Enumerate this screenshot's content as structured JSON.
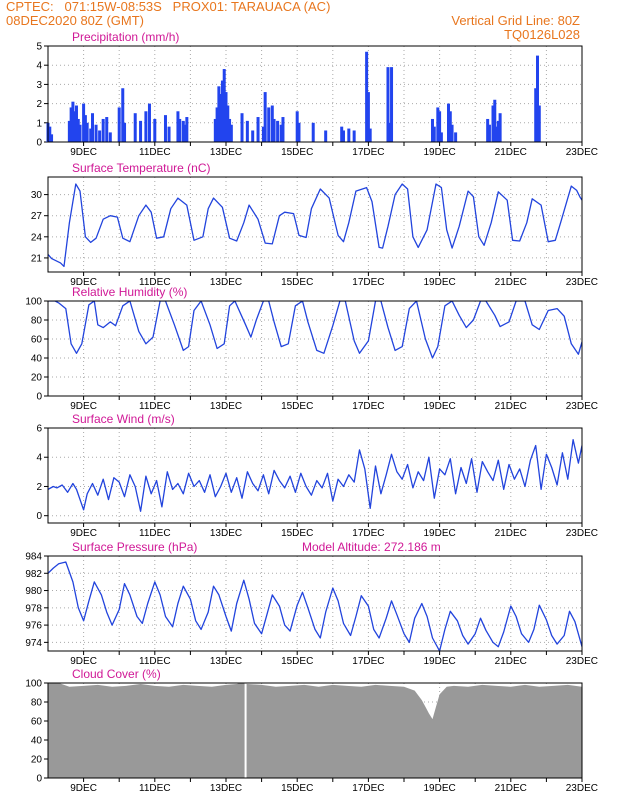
{
  "header": {
    "line1_left": "CPTEC:   071:15W-08:53S   PROX01: TARAUACA (AC)",
    "line2_left": "08DEC2020 80Z (GMT)",
    "line2_right": "Vertical Grid Line: 80Z",
    "line3_right": "TQ0126L028"
  },
  "colors": {
    "header": "#e8761e",
    "title": "#d01896",
    "line": "#2244dd",
    "bar": "#2244ee",
    "cloud": "#999999",
    "grid": "#aaaaaa"
  },
  "x_axis": {
    "labels": [
      "9DEC",
      "11DEC",
      "13DEC",
      "15DEC",
      "17DEC",
      "19DEC",
      "21DEC",
      "23DEC"
    ]
  },
  "chart_data": [
    {
      "type": "bar",
      "title": "Precipitation (mm/h)",
      "ylim": [
        0,
        5
      ],
      "yticks": [
        0,
        1,
        2,
        3,
        4,
        5
      ],
      "events": [
        [
          8.0,
          1.0
        ],
        [
          8.05,
          0.8
        ],
        [
          8.1,
          0.4
        ],
        [
          8.6,
          1.1
        ],
        [
          8.65,
          1.8
        ],
        [
          8.7,
          2.1
        ],
        [
          8.75,
          1.6
        ],
        [
          8.8,
          1.9
        ],
        [
          8.85,
          1.2
        ],
        [
          8.9,
          0.9
        ],
        [
          9.0,
          2.0
        ],
        [
          9.05,
          1.4
        ],
        [
          9.1,
          1.0
        ],
        [
          9.2,
          0.7
        ],
        [
          9.25,
          1.5
        ],
        [
          9.35,
          0.9
        ],
        [
          9.45,
          0.6
        ],
        [
          9.55,
          1.2
        ],
        [
          9.65,
          1.3
        ],
        [
          9.75,
          0.5
        ],
        [
          10.0,
          1.8
        ],
        [
          10.1,
          2.8
        ],
        [
          10.15,
          1.0
        ],
        [
          10.45,
          1.5
        ],
        [
          10.6,
          1.1
        ],
        [
          10.75,
          1.6
        ],
        [
          10.85,
          2.0
        ],
        [
          11.0,
          1.2
        ],
        [
          11.3,
          1.4
        ],
        [
          11.4,
          0.8
        ],
        [
          11.65,
          1.6
        ],
        [
          11.7,
          1.2
        ],
        [
          11.8,
          1.1
        ],
        [
          11.85,
          0.9
        ],
        [
          11.9,
          1.3
        ],
        [
          12.7,
          1.2
        ],
        [
          12.75,
          1.8
        ],
        [
          12.8,
          2.9
        ],
        [
          12.85,
          2.5
        ],
        [
          12.9,
          3.2
        ],
        [
          12.95,
          3.8
        ],
        [
          13.0,
          2.6
        ],
        [
          13.05,
          1.9
        ],
        [
          13.1,
          1.2
        ],
        [
          13.15,
          0.9
        ],
        [
          13.45,
          1.5
        ],
        [
          13.6,
          1.1
        ],
        [
          13.75,
          0.6
        ],
        [
          13.9,
          1.3
        ],
        [
          14.05,
          0.8
        ],
        [
          14.1,
          2.6
        ],
        [
          14.2,
          1.8
        ],
        [
          14.3,
          1.9
        ],
        [
          14.35,
          1.2
        ],
        [
          14.45,
          1.1
        ],
        [
          14.55,
          0.9
        ],
        [
          14.6,
          1.3
        ],
        [
          15.0,
          1.6
        ],
        [
          15.05,
          1.0
        ],
        [
          15.45,
          1.0
        ],
        [
          15.8,
          0.6
        ],
        [
          16.25,
          0.8
        ],
        [
          16.3,
          0.6
        ],
        [
          16.45,
          0.7
        ],
        [
          16.6,
          0.6
        ],
        [
          16.95,
          4.7
        ],
        [
          17.0,
          2.6
        ],
        [
          17.05,
          0.7
        ],
        [
          17.55,
          3.9
        ],
        [
          17.6,
          1.0
        ],
        [
          17.65,
          3.9
        ],
        [
          18.8,
          1.2
        ],
        [
          18.85,
          0.8
        ],
        [
          18.95,
          1.8
        ],
        [
          19.0,
          1.6
        ],
        [
          19.05,
          0.5
        ],
        [
          19.25,
          2.0
        ],
        [
          19.3,
          1.6
        ],
        [
          19.35,
          0.9
        ],
        [
          19.45,
          0.5
        ],
        [
          20.35,
          1.2
        ],
        [
          20.4,
          0.9
        ],
        [
          20.5,
          1.9
        ],
        [
          20.55,
          2.2
        ],
        [
          20.6,
          0.8
        ],
        [
          20.65,
          1.1
        ],
        [
          20.7,
          1.5
        ],
        [
          21.7,
          2.8
        ],
        [
          21.75,
          4.5
        ],
        [
          21.8,
          1.9
        ]
      ]
    },
    {
      "type": "line",
      "title": "Surface Temperature (nC)",
      "ylim": [
        19,
        32.5
      ],
      "yticks": [
        21,
        24,
        27,
        30
      ],
      "x": [
        8.0,
        8.1,
        8.35,
        8.45,
        8.6,
        8.78,
        8.9,
        9.05,
        9.2,
        9.35,
        9.55,
        9.75,
        9.95,
        10.1,
        10.3,
        10.55,
        10.75,
        10.9,
        11.05,
        11.25,
        11.45,
        11.65,
        11.9,
        12.1,
        12.35,
        12.5,
        12.65,
        12.9,
        13.1,
        13.3,
        13.5,
        13.65,
        13.9,
        14.1,
        14.3,
        14.5,
        14.65,
        14.9,
        15.05,
        15.25,
        15.4,
        15.65,
        15.9,
        16.15,
        16.3,
        16.45,
        16.65,
        16.95,
        17.1,
        17.3,
        17.4,
        17.55,
        17.75,
        17.95,
        18.1,
        18.25,
        18.4,
        18.65,
        18.9,
        19.05,
        19.2,
        19.35,
        19.55,
        19.8,
        19.95,
        20.1,
        20.25,
        20.45,
        20.65,
        20.9,
        21.05,
        21.25,
        21.45,
        21.6,
        21.85,
        22.05,
        22.25,
        22.4,
        22.7,
        22.85,
        22.95,
        23.0
      ],
      "y": [
        21.5,
        20.9,
        20.3,
        19.8,
        26,
        31.5,
        30.5,
        24,
        23.2,
        23.8,
        26.5,
        27,
        26.8,
        23.8,
        23.3,
        27,
        28.5,
        27.5,
        23.8,
        24,
        28,
        29.5,
        28.5,
        23.5,
        24,
        28,
        29.5,
        28.2,
        23.8,
        23.4,
        26,
        28.5,
        26.5,
        23.1,
        23,
        27,
        27.5,
        27.3,
        24.2,
        23.9,
        28,
        30.8,
        29.5,
        24.2,
        23.3,
        26,
        30.5,
        31,
        29,
        22.5,
        22.4,
        25.5,
        30,
        31.5,
        30.8,
        24,
        22.5,
        25,
        31.5,
        31,
        25,
        22.4,
        25.5,
        30.5,
        29.7,
        24,
        22.8,
        26,
        30.4,
        29.2,
        23.5,
        23.4,
        26,
        29.4,
        28.5,
        23.3,
        23.5,
        26,
        31.2,
        30.6,
        29.6,
        29.2
      ]
    },
    {
      "type": "line",
      "title": "Relative Humidity (%)",
      "ylim": [
        0,
        100
      ],
      "yticks": [
        0,
        20,
        40,
        60,
        80,
        100
      ],
      "x": [
        8.0,
        8.2,
        8.3,
        8.5,
        8.65,
        8.8,
        8.95,
        9.15,
        9.3,
        9.4,
        9.55,
        9.75,
        9.9,
        10.1,
        10.3,
        10.55,
        10.75,
        10.95,
        11.15,
        11.3,
        11.55,
        11.8,
        11.95,
        12.1,
        12.3,
        12.55,
        12.75,
        12.95,
        13.1,
        13.25,
        13.55,
        13.7,
        13.85,
        14.05,
        14.2,
        14.35,
        14.55,
        14.75,
        14.95,
        15.15,
        15.3,
        15.55,
        15.75,
        16.0,
        16.2,
        16.35,
        16.6,
        16.75,
        17.0,
        17.2,
        17.35,
        17.55,
        17.75,
        17.95,
        18.15,
        18.35,
        18.6,
        18.8,
        18.95,
        19.15,
        19.35,
        19.55,
        19.75,
        19.95,
        20.15,
        20.3,
        20.55,
        20.7,
        20.95,
        21.15,
        21.4,
        21.6,
        21.8,
        22.05,
        22.3,
        22.5,
        22.7,
        22.9,
        23.0
      ],
      "y": [
        100,
        100,
        98,
        92,
        55,
        45,
        55,
        96,
        100,
        75,
        72,
        78,
        74,
        95,
        100,
        68,
        55,
        62,
        100,
        100,
        75,
        48,
        52,
        90,
        100,
        75,
        50,
        55,
        95,
        100,
        75,
        62,
        80,
        100,
        100,
        78,
        52,
        55,
        95,
        100,
        78,
        48,
        45,
        74,
        100,
        100,
        58,
        45,
        58,
        100,
        100,
        72,
        48,
        52,
        92,
        100,
        60,
        40,
        52,
        95,
        100,
        85,
        72,
        80,
        100,
        100,
        85,
        73,
        78,
        100,
        100,
        75,
        70,
        90,
        92,
        84,
        55,
        44,
        57
      ]
    },
    {
      "type": "line",
      "title": "Surface Wind (m/s)",
      "ylim": [
        -0.5,
        6
      ],
      "yticks": [
        0,
        2,
        4,
        6
      ],
      "x": [
        8.0,
        8.15,
        8.25,
        8.4,
        8.55,
        8.7,
        8.8,
        9.0,
        9.1,
        9.25,
        9.4,
        9.55,
        9.7,
        9.85,
        10.0,
        10.15,
        10.3,
        10.45,
        10.6,
        10.75,
        10.9,
        11.05,
        11.2,
        11.35,
        11.5,
        11.65,
        11.8,
        11.95,
        12.1,
        12.25,
        12.4,
        12.55,
        12.7,
        12.85,
        13.0,
        13.15,
        13.3,
        13.45,
        13.6,
        13.75,
        13.9,
        14.05,
        14.2,
        14.35,
        14.5,
        14.65,
        14.8,
        14.95,
        15.1,
        15.25,
        15.4,
        15.55,
        15.7,
        15.85,
        16.0,
        16.15,
        16.3,
        16.45,
        16.6,
        16.75,
        16.9,
        17.05,
        17.2,
        17.35,
        17.5,
        17.65,
        17.8,
        17.95,
        18.1,
        18.25,
        18.4,
        18.55,
        18.7,
        18.85,
        19.0,
        19.15,
        19.3,
        19.45,
        19.6,
        19.75,
        19.9,
        20.05,
        20.2,
        20.35,
        20.5,
        20.65,
        20.8,
        20.95,
        21.1,
        21.25,
        21.4,
        21.55,
        21.7,
        21.85,
        22.0,
        22.15,
        22.3,
        22.45,
        22.6,
        22.75,
        22.9,
        23.0
      ],
      "y": [
        1.8,
        2.0,
        1.9,
        2.1,
        1.6,
        2.2,
        1.8,
        0.4,
        1.5,
        2.2,
        1.4,
        2.5,
        1.1,
        2.6,
        2.3,
        1.3,
        2.8,
        2.0,
        0.3,
        2.7,
        1.5,
        2.4,
        0.6,
        3.0,
        1.8,
        2.2,
        1.5,
        2.9,
        2.0,
        2.4,
        1.6,
        2.8,
        1.3,
        2.0,
        2.9,
        1.6,
        2.6,
        1.2,
        3.0,
        2.2,
        1.7,
        2.8,
        1.5,
        3.1,
        2.4,
        1.9,
        2.7,
        1.6,
        2.9,
        2.0,
        1.4,
        2.4,
        1.9,
        2.9,
        1.0,
        2.5,
        2.0,
        2.8,
        2.3,
        4.5,
        3.2,
        0.5,
        3.4,
        1.5,
        2.8,
        4.2,
        3.0,
        2.5,
        3.5,
        1.9,
        3.0,
        2.4,
        4.0,
        1.2,
        3.2,
        2.8,
        3.9,
        1.5,
        3.3,
        2.2,
        3.9,
        1.6,
        3.7,
        3.0,
        2.4,
        3.8,
        1.8,
        3.5,
        2.5,
        3.2,
        2.0,
        3.8,
        4.8,
        1.8,
        4.2,
        3.3,
        2.1,
        4.3,
        2.5,
        5.2,
        3.6,
        4.8
      ]
    },
    {
      "type": "line",
      "title": "Surface Pressure (hPa)",
      "annotation": "Model Altitude: 272.186 m",
      "ylim": [
        973,
        984
      ],
      "yticks": [
        974,
        976,
        978,
        980,
        982,
        984
      ],
      "x": [
        8.0,
        8.15,
        8.3,
        8.5,
        8.7,
        8.85,
        9.0,
        9.15,
        9.3,
        9.5,
        9.65,
        9.8,
        10.0,
        10.15,
        10.3,
        10.5,
        10.65,
        10.8,
        11.0,
        11.15,
        11.3,
        11.5,
        11.65,
        11.8,
        12.0,
        12.15,
        12.3,
        12.5,
        12.65,
        12.8,
        13.0,
        13.15,
        13.3,
        13.5,
        13.65,
        13.8,
        14.0,
        14.15,
        14.3,
        14.5,
        14.65,
        14.8,
        15.0,
        15.15,
        15.3,
        15.5,
        15.65,
        15.8,
        16.0,
        16.15,
        16.3,
        16.5,
        16.65,
        16.8,
        17.0,
        17.15,
        17.3,
        17.5,
        17.65,
        17.8,
        18.0,
        18.15,
        18.3,
        18.5,
        18.65,
        18.8,
        19.0,
        19.15,
        19.3,
        19.5,
        19.65,
        19.8,
        20.0,
        20.15,
        20.3,
        20.5,
        20.65,
        20.8,
        21.0,
        21.15,
        21.3,
        21.5,
        21.65,
        21.8,
        22.0,
        22.15,
        22.3,
        22.5,
        22.65,
        22.8,
        23.0
      ],
      "y": [
        982.0,
        982.6,
        983.1,
        983.3,
        981.0,
        978.0,
        976.5,
        978.8,
        981.0,
        979.5,
        977.5,
        976.0,
        977.8,
        980.8,
        979.5,
        977.0,
        976.2,
        978.5,
        981.0,
        979.5,
        977.0,
        975.8,
        978.5,
        980.5,
        979.0,
        976.5,
        975.5,
        977.5,
        980.5,
        979.5,
        977.0,
        975.3,
        978.5,
        981.2,
        979.0,
        976.2,
        975.0,
        977.2,
        979.5,
        978.2,
        976.0,
        975.3,
        978.3,
        979.8,
        978.0,
        975.5,
        974.5,
        977.5,
        980.3,
        978.8,
        976.2,
        974.8,
        977.0,
        979.4,
        978.2,
        975.5,
        974.5,
        976.8,
        978.8,
        977.2,
        975.0,
        974.0,
        976.8,
        978.5,
        977.0,
        974.5,
        973.0,
        975.5,
        977.6,
        976.5,
        974.8,
        973.8,
        975.0,
        976.8,
        975.4,
        974.0,
        973.5,
        975.2,
        978.2,
        977.0,
        975.0,
        974.0,
        975.5,
        978.3,
        976.6,
        974.8,
        973.8,
        974.8,
        977.6,
        976.4,
        973.5
      ]
    },
    {
      "type": "area",
      "title": "Cloud Cover (%)",
      "ylim": [
        0,
        100
      ],
      "yticks": [
        0,
        20,
        40,
        60,
        80,
        100
      ],
      "x": [
        8.0,
        8.3,
        8.6,
        9.0,
        9.4,
        9.8,
        10.2,
        10.6,
        11.0,
        11.4,
        11.8,
        12.2,
        12.6,
        13.0,
        13.3,
        13.4,
        13.6,
        14.0,
        14.4,
        14.8,
        15.2,
        15.6,
        16.0,
        16.4,
        16.8,
        17.2,
        17.6,
        18.0,
        18.3,
        18.5,
        18.6,
        18.7,
        18.8,
        18.9,
        19.0,
        19.2,
        19.4,
        19.8,
        20.2,
        20.6,
        21.0,
        21.4,
        21.8,
        22.2,
        22.6,
        23.0
      ],
      "y": [
        100,
        100,
        96,
        97,
        98,
        96,
        97,
        99,
        97,
        96,
        98,
        97,
        96,
        98,
        99,
        100,
        99,
        98,
        96,
        97,
        98,
        96,
        98,
        97,
        96,
        98,
        97,
        96,
        92,
        82,
        75,
        68,
        62,
        75,
        88,
        96,
        97,
        96,
        98,
        97,
        96,
        98,
        96,
        97,
        98,
        96
      ],
      "gaps": [
        13.55
      ]
    }
  ]
}
